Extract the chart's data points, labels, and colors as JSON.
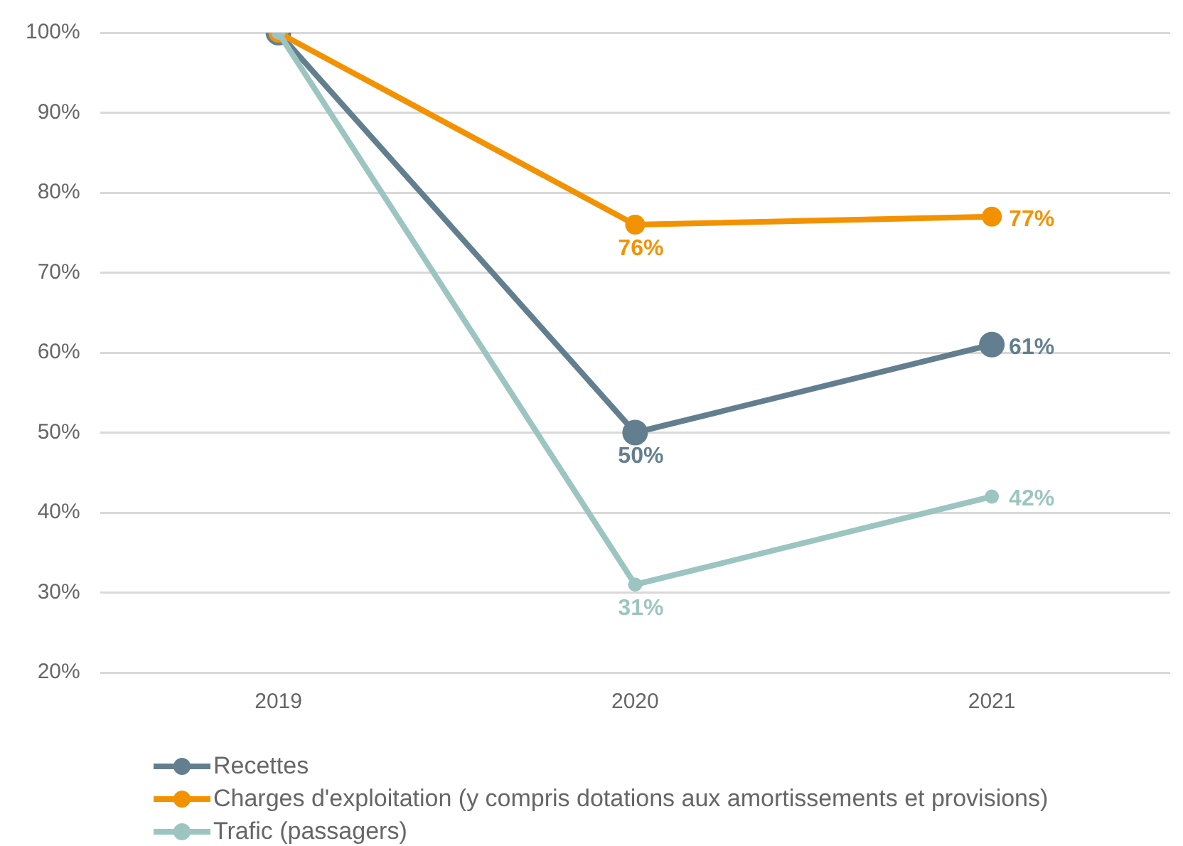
{
  "chart_data": {
    "type": "line",
    "categories": [
      "2019",
      "2020",
      "2021"
    ],
    "series": [
      {
        "name": "Recettes",
        "color": "#637f8f",
        "values": [
          100,
          50,
          61
        ],
        "value_labels": [
          null,
          "50%",
          "61%"
        ]
      },
      {
        "name": "Charges d'exploitation (y compris dotations aux amortissements et provisions)",
        "color": "#f39200",
        "values": [
          100,
          76,
          77
        ],
        "value_labels": [
          null,
          "76%",
          "77%"
        ]
      },
      {
        "name": "Trafic (passagers)",
        "color": "#9cc5c1",
        "values": [
          100,
          31,
          42
        ],
        "value_labels": [
          null,
          "31%",
          "42%"
        ]
      }
    ],
    "ylim": [
      20,
      100
    ],
    "yticks": [
      {
        "value": 20,
        "label": "20%"
      },
      {
        "value": 30,
        "label": "30%"
      },
      {
        "value": 40,
        "label": "40%"
      },
      {
        "value": 50,
        "label": "50%"
      },
      {
        "value": 60,
        "label": "60%"
      },
      {
        "value": 70,
        "label": "70%"
      },
      {
        "value": 80,
        "label": "80%"
      },
      {
        "value": 90,
        "label": "90%"
      },
      {
        "value": 100,
        "label": "100%"
      }
    ],
    "grid": "y",
    "legend": "bottom",
    "marker": "circle",
    "line_style": "solid"
  }
}
